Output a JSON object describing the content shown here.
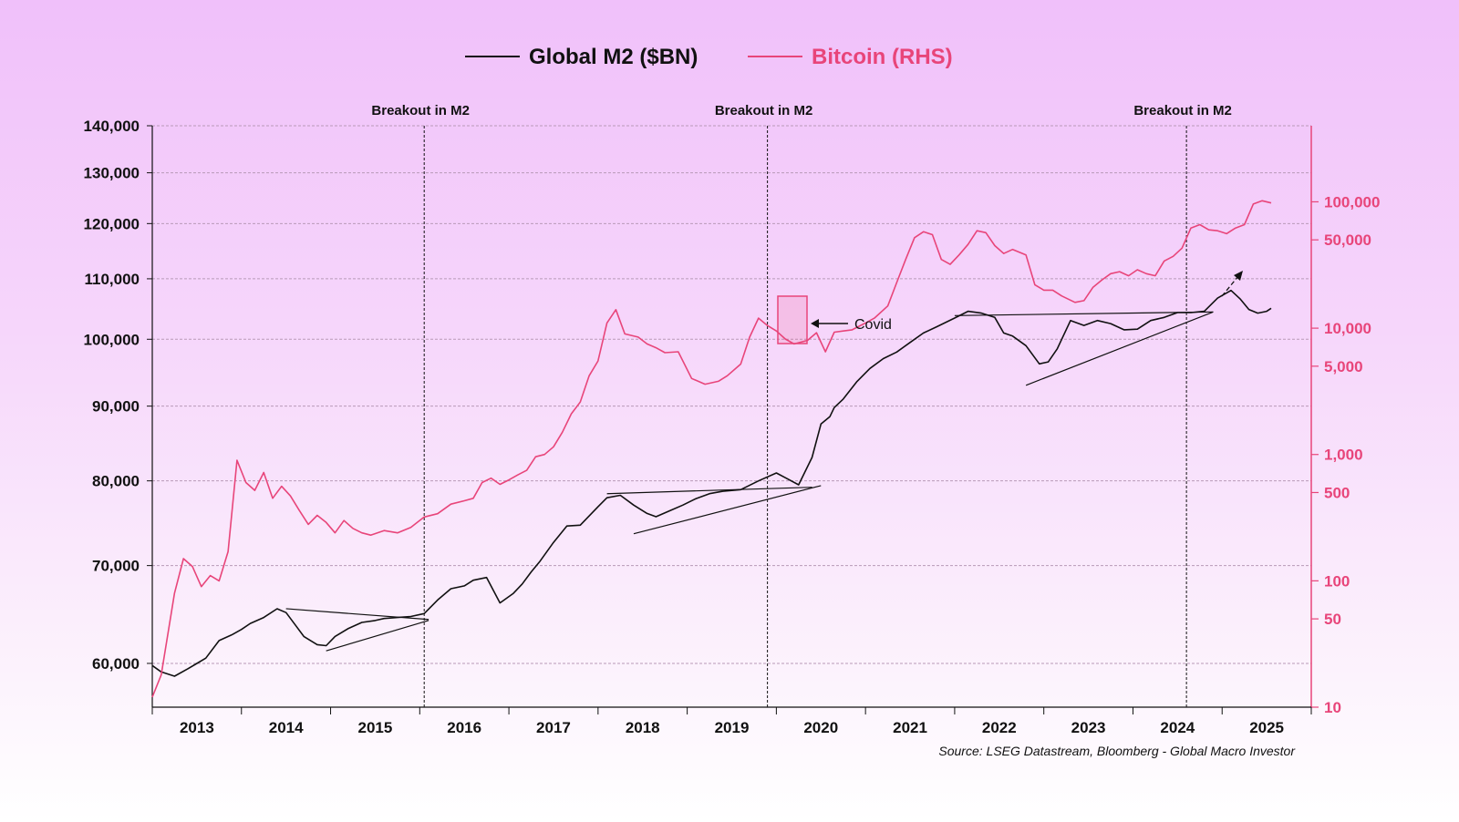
{
  "chart_data": {
    "type": "line",
    "title": "",
    "legend": [
      {
        "name": "Global M2 ($BN)",
        "color": "#111111"
      },
      {
        "name": "Bitcoin (RHS)",
        "color": "#e8457a"
      }
    ],
    "left_axis": {
      "ticks": [
        60000,
        70000,
        80000,
        90000,
        100000,
        110000,
        120000,
        130000,
        140000
      ],
      "tick_labels": [
        "60,000",
        "70,000",
        "80,000",
        "90,000",
        "100,000",
        "110,000",
        "120,000",
        "130,000",
        "140,000"
      ],
      "scale": "log",
      "ylim": [
        56000,
        140000
      ]
    },
    "right_axis": {
      "ticks": [
        10,
        50,
        100,
        500,
        1000,
        5000,
        10000,
        50000,
        100000
      ],
      "tick_labels": [
        "10",
        "50",
        "100",
        "500",
        "1,000",
        "5,000",
        "10,000",
        "50,000",
        "100,000"
      ],
      "scale": "log",
      "ylim": [
        10,
        400000
      ]
    },
    "x_axis": {
      "tick_labels": [
        "2013",
        "2014",
        "2015",
        "2016",
        "2017",
        "2018",
        "2019",
        "2020",
        "2021",
        "2022",
        "2023",
        "2024",
        "2025"
      ],
      "xlim": [
        2012.5,
        2025.5
      ]
    },
    "series": [
      {
        "name": "Global M2 ($BN)",
        "axis": "left",
        "x": [
          2012.5,
          2012.6,
          2012.75,
          2012.9,
          2013.0,
          2013.1,
          2013.25,
          2013.4,
          2013.5,
          2013.6,
          2013.75,
          2013.9,
          2014.0,
          2014.1,
          2014.2,
          2014.35,
          2014.45,
          2014.55,
          2014.7,
          2014.85,
          2015.0,
          2015.1,
          2015.25,
          2015.4,
          2015.55,
          2015.7,
          2015.85,
          2016.0,
          2016.1,
          2016.25,
          2016.4,
          2016.55,
          2016.65,
          2016.75,
          2016.85,
          2017.0,
          2017.15,
          2017.3,
          2017.5,
          2017.6,
          2017.75,
          2017.9,
          2018.05,
          2018.15,
          2018.3,
          2018.45,
          2018.6,
          2018.75,
          2018.9,
          2019.1,
          2019.3,
          2019.5,
          2019.6,
          2019.75,
          2019.9,
          2020.0,
          2020.1,
          2020.15,
          2020.25,
          2020.4,
          2020.55,
          2020.7,
          2020.85,
          2021.0,
          2021.15,
          2021.3,
          2021.5,
          2021.65,
          2021.8,
          2021.95,
          2022.05,
          2022.15,
          2022.3,
          2022.45,
          2022.55,
          2022.65,
          2022.8,
          2022.95,
          2023.1,
          2023.25,
          2023.4,
          2023.55,
          2023.7,
          2023.85,
          2024.0,
          2024.15,
          2024.3,
          2024.45,
          2024.6,
          2024.7,
          2024.8,
          2024.9,
          2025.0,
          2025.05
        ],
        "values": [
          59800,
          59200,
          58800,
          59500,
          60000,
          60500,
          62200,
          62800,
          63300,
          63900,
          64500,
          65400,
          65000,
          63800,
          62600,
          61800,
          61700,
          62600,
          63400,
          64000,
          64200,
          64400,
          64500,
          64600,
          64900,
          66300,
          67500,
          67800,
          68400,
          68700,
          66000,
          67000,
          68000,
          69300,
          70500,
          72600,
          74500,
          74600,
          76800,
          77900,
          78200,
          77000,
          76000,
          75600,
          76300,
          77000,
          77800,
          78400,
          78700,
          78900,
          80000,
          81000,
          80400,
          79500,
          83000,
          87500,
          88500,
          89800,
          91000,
          93500,
          95500,
          97000,
          98000,
          99500,
          101000,
          102000,
          103400,
          104500,
          104200,
          103500,
          101000,
          100500,
          99000,
          96200,
          96500,
          98500,
          103000,
          102200,
          103000,
          102500,
          101500,
          101600,
          103000,
          103500,
          104300,
          104300,
          104500,
          106700,
          108000,
          106600,
          104800,
          104200,
          104500,
          105000
        ]
      },
      {
        "name": "Bitcoin (RHS)",
        "axis": "right",
        "x": [
          2012.5,
          2012.6,
          2012.75,
          2012.85,
          2012.95,
          2013.05,
          2013.15,
          2013.25,
          2013.35,
          2013.45,
          2013.55,
          2013.65,
          2013.75,
          2013.85,
          2013.95,
          2014.05,
          2014.15,
          2014.25,
          2014.35,
          2014.45,
          2014.55,
          2014.65,
          2014.75,
          2014.85,
          2014.95,
          2015.1,
          2015.25,
          2015.4,
          2015.55,
          2015.7,
          2015.85,
          2016.0,
          2016.1,
          2016.2,
          2016.3,
          2016.4,
          2016.5,
          2016.6,
          2016.7,
          2016.8,
          2016.9,
          2017.0,
          2017.1,
          2017.2,
          2017.3,
          2017.4,
          2017.5,
          2017.6,
          2017.7,
          2017.8,
          2017.95,
          2018.05,
          2018.15,
          2018.25,
          2018.4,
          2018.55,
          2018.7,
          2018.85,
          2018.95,
          2019.1,
          2019.2,
          2019.3,
          2019.4,
          2019.5,
          2019.6,
          2019.7,
          2019.85,
          2019.95,
          2020.05,
          2020.15,
          2020.25,
          2020.35,
          2020.5,
          2020.6,
          2020.75,
          2020.85,
          2020.95,
          2021.05,
          2021.15,
          2021.25,
          2021.35,
          2021.45,
          2021.55,
          2021.65,
          2021.75,
          2021.85,
          2021.95,
          2022.05,
          2022.15,
          2022.3,
          2022.4,
          2022.5,
          2022.6,
          2022.7,
          2022.85,
          2022.95,
          2023.05,
          2023.15,
          2023.25,
          2023.35,
          2023.45,
          2023.55,
          2023.65,
          2023.75,
          2023.85,
          2023.95,
          2024.05,
          2024.15,
          2024.25,
          2024.35,
          2024.45,
          2024.55,
          2024.65,
          2024.75,
          2024.85,
          2024.95,
          2025.05
        ],
        "values": [
          12,
          18,
          80,
          150,
          130,
          90,
          110,
          100,
          170,
          900,
          600,
          520,
          720,
          450,
          560,
          470,
          360,
          280,
          330,
          290,
          240,
          300,
          260,
          240,
          230,
          250,
          240,
          265,
          320,
          340,
          405,
          430,
          450,
          600,
          650,
          580,
          630,
          690,
          750,
          960,
          1000,
          1150,
          1500,
          2100,
          2600,
          4200,
          5500,
          11000,
          14000,
          9000,
          8500,
          7500,
          7000,
          6400,
          6500,
          4000,
          3600,
          3800,
          4200,
          5200,
          8500,
          12000,
          10500,
          9500,
          8200,
          7500,
          8000,
          9200,
          6500,
          9300,
          9500,
          9700,
          11000,
          12000,
          15000,
          23000,
          35000,
          52000,
          58000,
          55000,
          35000,
          32000,
          38000,
          46000,
          59000,
          57000,
          45000,
          39000,
          42000,
          38000,
          22000,
          20000,
          20000,
          18000,
          16000,
          16500,
          21000,
          24000,
          27000,
          28000,
          26000,
          29000,
          27000,
          26000,
          34000,
          37000,
          43000,
          62000,
          66000,
          60000,
          59000,
          56000,
          62000,
          66000,
          96000,
          102000,
          98000
        ]
      }
    ],
    "annotations": {
      "breakout_label": "Breakout in M2",
      "breakout_years": [
        2015.55,
        2019.4,
        2024.1
      ],
      "covid_label": "Covid"
    },
    "source": "Source: LSEG Datastream, Bloomberg - Global Macro Investor"
  }
}
